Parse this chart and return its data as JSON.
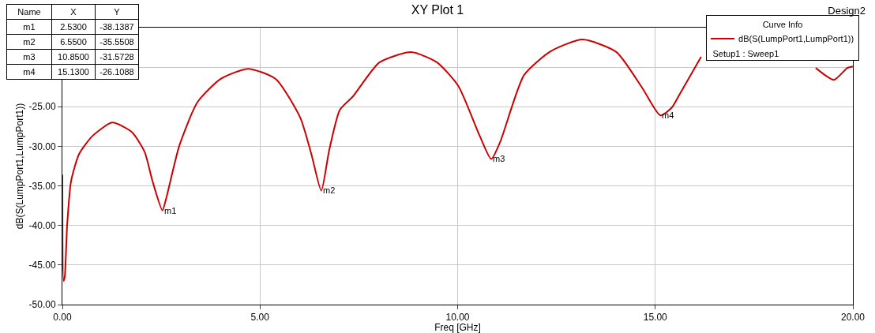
{
  "chart_data": {
    "type": "line",
    "title": "XY Plot 1",
    "xlabel": "Freq [GHz]",
    "ylabel": "dB(S(LumpPort1,LumpPort1))",
    "legend_title": "Curve Info",
    "legend": "top right",
    "grid": true,
    "xlim": [
      0,
      20
    ],
    "xticks": [
      {
        "value": 0,
        "label": "0.00"
      },
      {
        "value": 5,
        "label": "5.00"
      },
      {
        "value": 10,
        "label": "10.00"
      },
      {
        "value": 15,
        "label": "15.00"
      },
      {
        "value": 20,
        "label": "20.00"
      }
    ],
    "ylim": [
      -50,
      -15
    ],
    "yticks": [
      {
        "value": -50,
        "label": "-50.00"
      },
      {
        "value": -45,
        "label": "-45.00"
      },
      {
        "value": -40,
        "label": "-40.00"
      },
      {
        "value": -35,
        "label": "-35.00"
      },
      {
        "value": -30,
        "label": "-30.00"
      },
      {
        "value": -25,
        "label": "-25.00"
      },
      {
        "value": -20,
        "label": null
      },
      {
        "value": -15,
        "label": null
      }
    ],
    "series": [
      {
        "name": "dB(S(LumpPort1,LumpPort1))",
        "color": "#cc0000",
        "x": [
          0,
          0.03,
          0.06,
          0.12,
          0.22,
          0.42,
          0.76,
          1.26,
          1.76,
          2.08,
          2.28,
          2.53,
          2.62,
          2.96,
          3.42,
          4.0,
          4.7,
          5.4,
          6.02,
          6.3,
          6.55,
          6.75,
          7.02,
          7.35,
          8.02,
          8.82,
          9.48,
          10.02,
          10.56,
          10.85,
          11.08,
          11.68,
          12.35,
          13.16,
          14.02,
          14.68,
          15.13,
          15.42,
          15.62,
          16.16,
          17.5,
          19.06,
          19.52,
          19.86,
          20
        ],
        "values": [
          -33.6,
          -47.0,
          -46.5,
          -40.0,
          -34.4,
          -31.0,
          -28.7,
          -27.0,
          -28.2,
          -30.7,
          -34.4,
          -38.1,
          -36.7,
          -29.9,
          -24.4,
          -21.5,
          -20.2,
          -21.5,
          -26.4,
          -31.0,
          -35.6,
          -30.5,
          -25.4,
          -23.7,
          -19.4,
          -18.1,
          -19.4,
          -22.4,
          -28.7,
          -31.6,
          -29.4,
          -21.0,
          -18.0,
          -16.5,
          -18.1,
          -22.7,
          -26.1,
          -25.1,
          -23.4,
          -18.7,
          null,
          -20.1,
          -21.6,
          -20.1,
          -19.9
        ]
      }
    ],
    "annotations": [
      "Design2",
      "Setup1 : Sweep1",
      "Name",
      "X",
      "Y",
      "m1",
      "2.5300",
      "-38.1387",
      "m2",
      "6.5500",
      "-35.5508",
      "m3",
      "10.8500",
      "-31.5728",
      "m4",
      "15.1300",
      "-26.1088",
      {
        "text": "m1",
        "x": 2.53,
        "y": -38.1387
      },
      {
        "text": "m2",
        "x": 6.55,
        "y": -35.5508
      },
      {
        "text": "m3",
        "x": 10.85,
        "y": -31.5728
      },
      {
        "text": "m4",
        "x": 15.13,
        "y": -26.1088
      }
    ]
  }
}
